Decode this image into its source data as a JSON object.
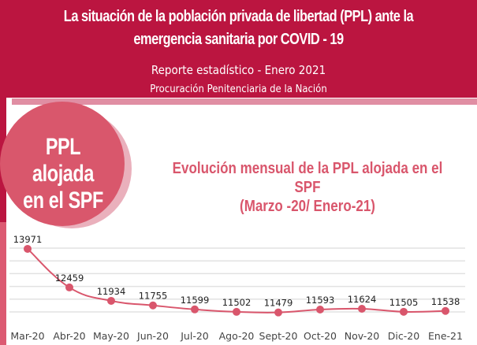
{
  "header": {
    "title_line1": "La situación de la población privada de libertad (PPL) ante la",
    "title_line2": "emergencia sanitaria por COVID - 19",
    "subtitle": "Reporte estadístico - Enero 2021",
    "organization": "Procuración Penitenciaria de la Nación"
  },
  "badge": {
    "line1": "PPL alojada",
    "line2": "en el SPF"
  },
  "colors": {
    "header_bg": "#bb1540",
    "accent": "#d9566c",
    "band": "#e08ea3",
    "gridline": "#e2e2e2"
  },
  "chart_data": {
    "type": "line",
    "title_line1": "Evolución mensual de la PPL alojada en el",
    "title_line2": "SPF",
    "title_line3": "(Marzo -20/ Enero-21)",
    "xlabel": "",
    "ylabel": "",
    "categories": [
      "Mar-20",
      "Abr-20",
      "May-20",
      "Jun-20",
      "Jul-20",
      "Ago-20",
      "Sept-20",
      "Oct-20",
      "Nov-20",
      "Dic-20",
      "Ene-21"
    ],
    "values": [
      13971,
      12459,
      11934,
      11755,
      11599,
      11502,
      11479,
      11593,
      11624,
      11505,
      11538
    ],
    "data_labels": [
      "13971",
      "12459",
      "11934",
      "11755",
      "11599",
      "11502",
      "11479",
      "11593",
      "11624",
      "11505",
      "11538"
    ],
    "ylim": [
      11500,
      14000
    ],
    "gridlines": [
      11500,
      12000,
      12500,
      13000,
      13500,
      14000
    ],
    "grid": true,
    "smooth": true,
    "legend": "none"
  }
}
